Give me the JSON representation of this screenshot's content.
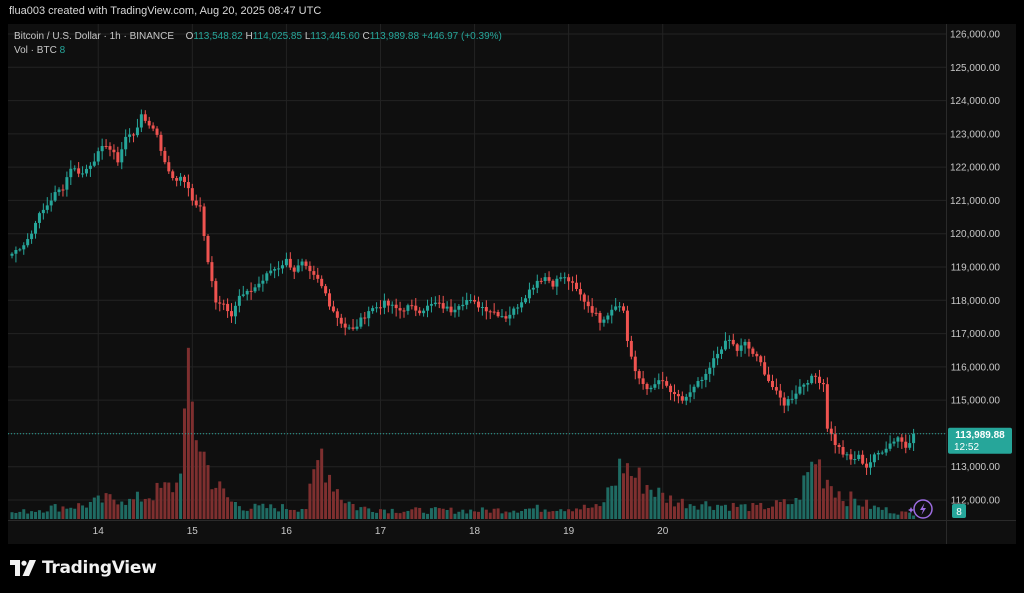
{
  "header": {
    "credit": "flua003 created with TradingView.com, Aug 20, 2025 08:47 UTC"
  },
  "legend": {
    "symbol": "Bitcoin / U.S. Dollar · 1h · BINANCE",
    "open_label": "O",
    "open": "113,548.82",
    "high_label": "H",
    "high": "114,025.85",
    "low_label": "L",
    "low": "113,445.60",
    "close_label": "C",
    "close": "113,989.88",
    "change": "+446.97 (+0.39%)",
    "vol_label": "Vol · BTC",
    "vol_value": "8"
  },
  "price_tag": {
    "price": "113,989.88",
    "countdown": "12:52"
  },
  "volume_tag": "8",
  "footer": {
    "brand": "TradingView"
  },
  "colors": {
    "up": "#26a69a",
    "down": "#ef5350",
    "vol_up": "#1f6b63",
    "vol_down": "#7e2f2f",
    "grid": "#232323",
    "text": "#c8c8c8"
  },
  "chart_data": {
    "type": "candlestick",
    "title": "Bitcoin / U.S. Dollar · 1h · BINANCE",
    "xlabel": "",
    "ylabel": "",
    "x_ticks": [
      "14",
      "15",
      "16",
      "17",
      "18",
      "19",
      "20"
    ],
    "y_ticks": [
      "112,000.00",
      "113,000.00",
      "114,000.00",
      "115,000.00",
      "116,000.00",
      "117,000.00",
      "118,000.00",
      "119,000.00",
      "120,000.00",
      "121,000.00",
      "122,000.00",
      "123,000.00",
      "124,000.00",
      "125,000.00",
      "126,000.00"
    ],
    "ylim": [
      111400,
      126300
    ],
    "grid": true,
    "last_price": 113989.88,
    "close_anchors": [
      [
        0,
        119400
      ],
      [
        3,
        119700
      ],
      [
        5,
        120000
      ],
      [
        6,
        120400
      ],
      [
        8,
        120700
      ],
      [
        11,
        121200
      ],
      [
        13,
        121400
      ],
      [
        15,
        122000
      ],
      [
        18,
        121800
      ],
      [
        20,
        122100
      ],
      [
        24,
        122700
      ],
      [
        27,
        122200
      ],
      [
        29,
        122900
      ],
      [
        31,
        123000
      ],
      [
        33,
        123500
      ],
      [
        35,
        123300
      ],
      [
        37,
        123000
      ],
      [
        39,
        122100
      ],
      [
        41,
        121700
      ],
      [
        44,
        121600
      ],
      [
        46,
        121000
      ],
      [
        48,
        120800
      ],
      [
        50,
        119100
      ],
      [
        52,
        118000
      ],
      [
        54,
        117900
      ],
      [
        56,
        117600
      ],
      [
        58,
        118100
      ],
      [
        60,
        118200
      ],
      [
        62,
        118400
      ],
      [
        64,
        118600
      ],
      [
        66,
        118900
      ],
      [
        68,
        119000
      ],
      [
        70,
        119200
      ],
      [
        72,
        118900
      ],
      [
        74,
        119100
      ],
      [
        76,
        118800
      ],
      [
        78,
        118600
      ],
      [
        80,
        118200
      ],
      [
        81,
        117900
      ],
      [
        83,
        117500
      ],
      [
        85,
        117200
      ],
      [
        87,
        117100
      ],
      [
        89,
        117400
      ],
      [
        91,
        117700
      ],
      [
        93,
        117800
      ],
      [
        95,
        117900
      ],
      [
        97,
        117800
      ],
      [
        99,
        117700
      ],
      [
        101,
        117800
      ],
      [
        104,
        117700
      ],
      [
        106,
        117800
      ],
      [
        108,
        117900
      ],
      [
        110,
        117800
      ],
      [
        112,
        117700
      ],
      [
        114,
        117900
      ],
      [
        116,
        118000
      ],
      [
        118,
        117900
      ],
      [
        120,
        117800
      ],
      [
        122,
        117700
      ],
      [
        124,
        117600
      ],
      [
        126,
        117500
      ],
      [
        128,
        117700
      ],
      [
        130,
        118000
      ],
      [
        132,
        118300
      ],
      [
        134,
        118600
      ],
      [
        136,
        118700
      ],
      [
        138,
        118500
      ],
      [
        140,
        118700
      ],
      [
        142,
        118600
      ],
      [
        144,
        118300
      ],
      [
        146,
        118000
      ],
      [
        148,
        117700
      ],
      [
        150,
        117400
      ],
      [
        152,
        117600
      ],
      [
        154,
        117900
      ],
      [
        156,
        117700
      ],
      [
        157,
        116800
      ],
      [
        159,
        115800
      ],
      [
        161,
        115500
      ],
      [
        163,
        115300
      ],
      [
        165,
        115600
      ],
      [
        167,
        115400
      ],
      [
        169,
        115100
      ],
      [
        171,
        115000
      ],
      [
        173,
        115200
      ],
      [
        175,
        115500
      ],
      [
        177,
        115700
      ],
      [
        179,
        116200
      ],
      [
        181,
        116600
      ],
      [
        183,
        116800
      ],
      [
        185,
        116500
      ],
      [
        187,
        116700
      ],
      [
        189,
        116400
      ],
      [
        191,
        116100
      ],
      [
        193,
        115600
      ],
      [
        195,
        115200
      ],
      [
        197,
        114900
      ],
      [
        199,
        115100
      ],
      [
        201,
        115400
      ],
      [
        203,
        115600
      ],
      [
        205,
        115700
      ],
      [
        207,
        115500
      ],
      [
        208,
        114200
      ],
      [
        210,
        113700
      ],
      [
        212,
        113400
      ],
      [
        214,
        113200
      ],
      [
        216,
        113300
      ],
      [
        218,
        113000
      ],
      [
        220,
        113300
      ],
      [
        222,
        113500
      ],
      [
        224,
        113700
      ],
      [
        226,
        113900
      ],
      [
        228,
        113600
      ],
      [
        230,
        113990
      ]
    ],
    "volume_anchors": [
      [
        0,
        1
      ],
      [
        10,
        2
      ],
      [
        18,
        2.4
      ],
      [
        28,
        4
      ],
      [
        30,
        3
      ],
      [
        42,
        6
      ],
      [
        45,
        22
      ],
      [
        47,
        16
      ],
      [
        50,
        9
      ],
      [
        52,
        6
      ],
      [
        56,
        3
      ],
      [
        60,
        2
      ],
      [
        75,
        2
      ],
      [
        79,
        12
      ],
      [
        81,
        8
      ],
      [
        84,
        4
      ],
      [
        88,
        2
      ],
      [
        100,
        1.5
      ],
      [
        120,
        1.5
      ],
      [
        140,
        2
      ],
      [
        150,
        2
      ],
      [
        156,
        10
      ],
      [
        158,
        8
      ],
      [
        162,
        6
      ],
      [
        166,
        4
      ],
      [
        170,
        3
      ],
      [
        180,
        2.5
      ],
      [
        190,
        2
      ],
      [
        200,
        3
      ],
      [
        205,
        11
      ],
      [
        207,
        8
      ],
      [
        212,
        4
      ],
      [
        220,
        2
      ],
      [
        228,
        1
      ],
      [
        230,
        1
      ]
    ],
    "volume_max": 22
  }
}
